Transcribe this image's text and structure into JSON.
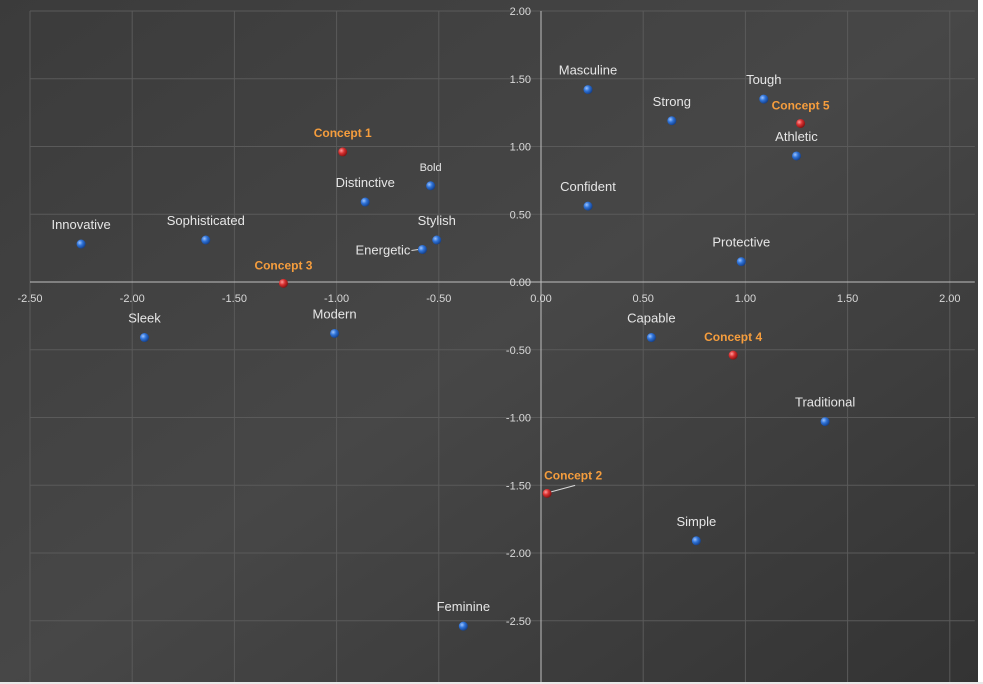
{
  "chart_data": {
    "type": "scatter",
    "title": "",
    "xlabel": "",
    "ylabel": "",
    "xlim": [
      -2.5,
      2.0
    ],
    "ylim": [
      -2.7,
      2.0
    ],
    "x_ticks": [
      "-2.50",
      "-2.00",
      "-1.50",
      "-1.00",
      "-0.50",
      "0.00",
      "0.50",
      "1.00",
      "1.50",
      "2.00"
    ],
    "y_ticks": [
      "2.00",
      "1.50",
      "1.00",
      "0.50",
      "0.00",
      "-0.50",
      "-1.00",
      "-1.50",
      "-2.00",
      "-2.50"
    ],
    "grid": true,
    "colors": {
      "background": "#3d3d3d",
      "attribute_point": "#2f73d8",
      "concept_point": "#d93030",
      "concept_label": "#f59d3d",
      "attribute_label": "#e6e6e6"
    },
    "series": [
      {
        "points": [
          {
            "label": "Innovative",
            "x": -2.25,
            "y": 0.28
          },
          {
            "label": "Sophisticated",
            "x": -1.64,
            "y": 0.31
          },
          {
            "label": "Sleek",
            "x": -1.94,
            "y": -0.41
          },
          {
            "label": "Modern",
            "x": -1.01,
            "y": -0.38
          },
          {
            "label": "Distinctive",
            "x": -0.86,
            "y": 0.59
          },
          {
            "label": "Bold",
            "x": -0.54,
            "y": 0.71
          },
          {
            "label": "Stylish",
            "x": -0.51,
            "y": 0.31
          },
          {
            "label": "Energetic",
            "x": -0.58,
            "y": 0.24
          },
          {
            "label": "Masculine",
            "x": 0.23,
            "y": 1.42
          },
          {
            "label": "Strong",
            "x": 0.64,
            "y": 1.19
          },
          {
            "label": "Tough",
            "x": 1.09,
            "y": 1.35
          },
          {
            "label": "Athletic",
            "x": 1.25,
            "y": 0.93
          },
          {
            "label": "Confident",
            "x": 0.23,
            "y": 0.56
          },
          {
            "label": "Protective",
            "x": 0.98,
            "y": 0.15
          },
          {
            "label": "Capable",
            "x": 0.54,
            "y": -0.41
          },
          {
            "label": "Traditional",
            "x": 1.39,
            "y": -1.03
          },
          {
            "label": "Simple",
            "x": 0.76,
            "y": -1.91
          },
          {
            "label": "Feminine",
            "x": -0.38,
            "y": -2.54
          }
        ]
      },
      {
        "points": [
          {
            "label": "Concept 1",
            "x": -0.97,
            "y": 0.96
          },
          {
            "label": "Concept 2",
            "x": 0.03,
            "y": -1.56
          },
          {
            "label": "Concept 3",
            "x": -1.26,
            "y": -0.01
          },
          {
            "label": "Concept 4",
            "x": 0.94,
            "y": -0.54
          },
          {
            "label": "Concept 5",
            "x": 1.27,
            "y": 1.17
          }
        ]
      }
    ]
  }
}
